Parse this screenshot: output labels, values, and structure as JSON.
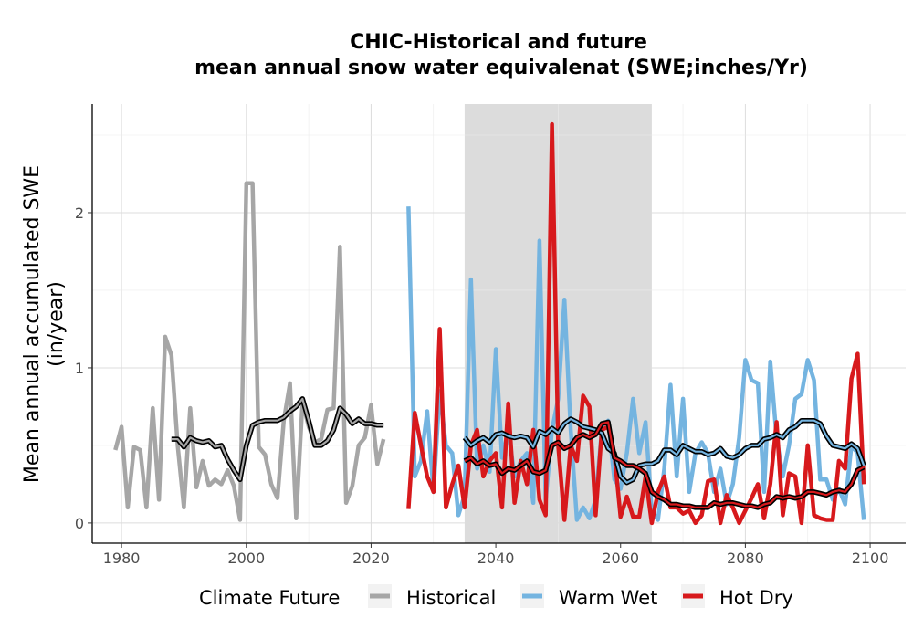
{
  "chart_data": {
    "type": "line",
    "title": "CHIC-Historical and future",
    "subtitle": "mean annual snow water equivalenat (SWE;inches/Yr)",
    "ylabel_line1": "Mean annual accumulated SWE",
    "ylabel_line2": "(in/year)",
    "xlabel": "",
    "xlim": [
      1975.3,
      2105.7
    ],
    "ylim": [
      -0.13,
      2.7
    ],
    "x_ticks": [
      1980,
      2000,
      2020,
      2040,
      2060,
      2080,
      2100
    ],
    "y_ticks": [
      0,
      1,
      2
    ],
    "grid": true,
    "shaded_period": [
      2035,
      2065
    ],
    "legend": {
      "title": "Climate Future",
      "position": "bottom",
      "entries": [
        {
          "label": "Historical",
          "color": "#a6a6a6"
        },
        {
          "label": "Warm Wet",
          "color": "#74b4e0"
        },
        {
          "label": "Hot Dry",
          "color": "#d7191c"
        }
      ]
    },
    "series": [
      {
        "name": "Historical",
        "color": "#a6a6a6",
        "x": [
          1979,
          1980,
          1981,
          1982,
          1983,
          1984,
          1985,
          1986,
          1987,
          1988,
          1989,
          1990,
          1991,
          1992,
          1993,
          1994,
          1995,
          1996,
          1997,
          1998,
          1999,
          2000,
          2001,
          2002,
          2003,
          2004,
          2005,
          2006,
          2007,
          2008,
          2009,
          2010,
          2011,
          2012,
          2013,
          2014,
          2015,
          2016,
          2017,
          2018,
          2019,
          2020,
          2021,
          2022
        ],
        "y": [
          0.47,
          0.62,
          0.1,
          0.49,
          0.47,
          0.1,
          0.74,
          0.15,
          1.2,
          1.08,
          0.5,
          0.1,
          0.74,
          0.23,
          0.4,
          0.24,
          0.28,
          0.25,
          0.34,
          0.24,
          0.02,
          2.19,
          2.19,
          0.49,
          0.44,
          0.25,
          0.16,
          0.66,
          0.9,
          0.03,
          0.78,
          0.62,
          0.52,
          0.54,
          0.73,
          0.74,
          1.78,
          0.13,
          0.24,
          0.5,
          0.55,
          0.76,
          0.38,
          0.54
        ]
      },
      {
        "name": "Historical smoothed",
        "color": "#a6a6a6",
        "smooth": true,
        "x": [
          1988,
          1989,
          1990,
          1991,
          1992,
          1993,
          1994,
          1995,
          1996,
          1997,
          1998,
          1999,
          2000,
          2001,
          2002,
          2003,
          2004,
          2005,
          2006,
          2007,
          2008,
          2009,
          2010,
          2011,
          2012,
          2013,
          2014,
          2015,
          2016,
          2017,
          2018,
          2019,
          2020,
          2021,
          2022
        ],
        "y": [
          0.54,
          0.54,
          0.49,
          0.55,
          0.53,
          0.52,
          0.53,
          0.49,
          0.5,
          0.41,
          0.34,
          0.28,
          0.5,
          0.63,
          0.65,
          0.66,
          0.66,
          0.66,
          0.68,
          0.72,
          0.75,
          0.8,
          0.66,
          0.5,
          0.5,
          0.53,
          0.6,
          0.74,
          0.7,
          0.64,
          0.67,
          0.64,
          0.64,
          0.63,
          0.63
        ]
      },
      {
        "name": "Warm Wet",
        "color": "#74b4e0",
        "x": [
          2026,
          2027,
          2028,
          2029,
          2030,
          2031,
          2032,
          2033,
          2034,
          2035,
          2036,
          2037,
          2038,
          2039,
          2040,
          2041,
          2042,
          2043,
          2044,
          2045,
          2046,
          2047,
          2048,
          2049,
          2050,
          2051,
          2052,
          2053,
          2054,
          2055,
          2056,
          2057,
          2058,
          2059,
          2060,
          2061,
          2062,
          2063,
          2064,
          2065,
          2066,
          2067,
          2068,
          2069,
          2070,
          2071,
          2072,
          2073,
          2074,
          2075,
          2076,
          2077,
          2078,
          2079,
          2080,
          2081,
          2082,
          2083,
          2084,
          2085,
          2086,
          2087,
          2088,
          2089,
          2090,
          2091,
          2092,
          2093,
          2094,
          2095,
          2096,
          2097,
          2098,
          2099
        ],
        "y": [
          2.04,
          0.3,
          0.4,
          0.72,
          0.2,
          0.85,
          0.5,
          0.45,
          0.05,
          0.18,
          1.57,
          0.35,
          0.5,
          0.33,
          1.12,
          0.42,
          0.6,
          0.3,
          0.4,
          0.45,
          0.13,
          1.82,
          0.15,
          0.6,
          0.8,
          1.44,
          0.6,
          0.02,
          0.1,
          0.03,
          0.15,
          0.6,
          0.66,
          0.28,
          0.22,
          0.45,
          0.8,
          0.45,
          0.65,
          0.08,
          0.02,
          0.35,
          0.89,
          0.3,
          0.8,
          0.2,
          0.45,
          0.52,
          0.45,
          0.2,
          0.35,
          0.12,
          0.25,
          0.55,
          1.05,
          0.92,
          0.9,
          0.2,
          1.04,
          0.55,
          0.3,
          0.5,
          0.8,
          0.83,
          1.05,
          0.92,
          0.28,
          0.28,
          0.15,
          0.22,
          0.12,
          0.5,
          0.45,
          0.02
        ]
      },
      {
        "name": "Warm Wet smoothed",
        "color": "#74b4e0",
        "smooth": true,
        "x": [
          2035,
          2036,
          2037,
          2038,
          2039,
          2040,
          2041,
          2042,
          2043,
          2044,
          2045,
          2046,
          2047,
          2048,
          2049,
          2050,
          2051,
          2052,
          2053,
          2054,
          2055,
          2056,
          2057,
          2058,
          2059,
          2060,
          2061,
          2062,
          2063,
          2064,
          2065,
          2066,
          2067,
          2068,
          2069,
          2070,
          2071,
          2072,
          2073,
          2074,
          2075,
          2076,
          2077,
          2078,
          2079,
          2080,
          2081,
          2082,
          2083,
          2084,
          2085,
          2086,
          2087,
          2088,
          2089,
          2090,
          2091,
          2092,
          2093,
          2094,
          2095,
          2096,
          2097,
          2098,
          2099
        ],
        "y": [
          0.55,
          0.5,
          0.53,
          0.55,
          0.52,
          0.57,
          0.58,
          0.56,
          0.55,
          0.56,
          0.55,
          0.49,
          0.59,
          0.57,
          0.61,
          0.58,
          0.64,
          0.67,
          0.65,
          0.62,
          0.61,
          0.6,
          0.58,
          0.48,
          0.45,
          0.3,
          0.26,
          0.28,
          0.37,
          0.38,
          0.38,
          0.4,
          0.47,
          0.47,
          0.44,
          0.5,
          0.48,
          0.46,
          0.46,
          0.44,
          0.45,
          0.48,
          0.43,
          0.42,
          0.44,
          0.48,
          0.5,
          0.5,
          0.54,
          0.55,
          0.57,
          0.55,
          0.6,
          0.62,
          0.66,
          0.66,
          0.66,
          0.64,
          0.56,
          0.5,
          0.49,
          0.48,
          0.51,
          0.48,
          0.37
        ]
      },
      {
        "name": "Hot Dry",
        "color": "#d7191c",
        "x": [
          2026,
          2027,
          2028,
          2029,
          2030,
          2031,
          2032,
          2033,
          2034,
          2035,
          2036,
          2037,
          2038,
          2039,
          2040,
          2041,
          2042,
          2043,
          2044,
          2045,
          2046,
          2047,
          2048,
          2049,
          2050,
          2051,
          2052,
          2053,
          2054,
          2055,
          2056,
          2057,
          2058,
          2059,
          2060,
          2061,
          2062,
          2063,
          2064,
          2065,
          2066,
          2067,
          2068,
          2069,
          2070,
          2071,
          2072,
          2073,
          2074,
          2075,
          2076,
          2077,
          2078,
          2079,
          2080,
          2081,
          2082,
          2083,
          2084,
          2085,
          2086,
          2087,
          2088,
          2089,
          2090,
          2091,
          2092,
          2093,
          2094,
          2095,
          2096,
          2097,
          2098,
          2099
        ],
        "y": [
          0.09,
          0.71,
          0.5,
          0.3,
          0.2,
          1.25,
          0.1,
          0.25,
          0.37,
          0.1,
          0.5,
          0.6,
          0.3,
          0.4,
          0.45,
          0.1,
          0.77,
          0.13,
          0.4,
          0.25,
          0.6,
          0.15,
          0.05,
          2.57,
          0.5,
          0.02,
          0.5,
          0.4,
          0.82,
          0.75,
          0.05,
          0.6,
          0.62,
          0.45,
          0.04,
          0.17,
          0.04,
          0.04,
          0.3,
          0.0,
          0.2,
          0.3,
          0.1,
          0.1,
          0.06,
          0.08,
          0.0,
          0.05,
          0.27,
          0.28,
          0.0,
          0.18,
          0.1,
          0.0,
          0.08,
          0.16,
          0.25,
          0.03,
          0.25,
          0.65,
          0.05,
          0.32,
          0.3,
          0.0,
          0.5,
          0.05,
          0.03,
          0.02,
          0.02,
          0.4,
          0.35,
          0.93,
          1.09,
          0.25
        ]
      },
      {
        "name": "Hot Dry smoothed",
        "color": "#d7191c",
        "smooth": true,
        "x": [
          2035,
          2036,
          2037,
          2038,
          2039,
          2040,
          2041,
          2042,
          2043,
          2044,
          2045,
          2046,
          2047,
          2048,
          2049,
          2050,
          2051,
          2052,
          2053,
          2054,
          2055,
          2056,
          2057,
          2058,
          2059,
          2060,
          2061,
          2062,
          2063,
          2064,
          2065,
          2066,
          2067,
          2068,
          2069,
          2070,
          2071,
          2072,
          2073,
          2074,
          2075,
          2076,
          2077,
          2078,
          2079,
          2080,
          2081,
          2082,
          2083,
          2084,
          2085,
          2086,
          2087,
          2088,
          2089,
          2090,
          2091,
          2092,
          2093,
          2094,
          2095,
          2096,
          2097,
          2098,
          2099
        ],
        "y": [
          0.4,
          0.42,
          0.38,
          0.4,
          0.37,
          0.38,
          0.32,
          0.35,
          0.34,
          0.37,
          0.4,
          0.33,
          0.32,
          0.34,
          0.5,
          0.52,
          0.48,
          0.5,
          0.55,
          0.57,
          0.55,
          0.57,
          0.64,
          0.65,
          0.42,
          0.4,
          0.37,
          0.37,
          0.35,
          0.32,
          0.2,
          0.17,
          0.15,
          0.12,
          0.12,
          0.11,
          0.11,
          0.1,
          0.1,
          0.1,
          0.13,
          0.12,
          0.13,
          0.13,
          0.12,
          0.11,
          0.11,
          0.1,
          0.12,
          0.13,
          0.17,
          0.16,
          0.17,
          0.16,
          0.17,
          0.2,
          0.2,
          0.19,
          0.18,
          0.2,
          0.21,
          0.2,
          0.25,
          0.34,
          0.36
        ]
      }
    ]
  }
}
